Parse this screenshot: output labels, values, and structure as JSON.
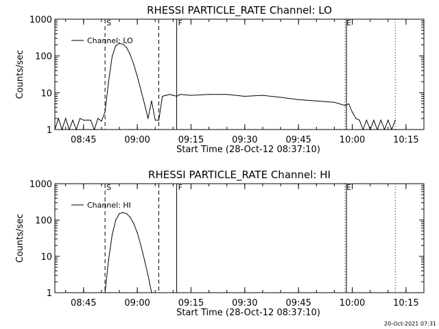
{
  "chart_data": [
    {
      "type": "line",
      "title": "RHESSI PARTICLE_RATE Channel: LO",
      "xlabel": "Start Time (28-Oct-12 08:37:10)",
      "ylabel": "Counts/sec",
      "yscale": "log",
      "ylim": [
        1,
        1000
      ],
      "yticks": [
        "1",
        "10",
        "100",
        "1000"
      ],
      "xticks": [
        "08:45",
        "09:00",
        "09:15",
        "09:30",
        "09:45",
        "10:00",
        "10:15"
      ],
      "legend": "Channel: LO",
      "markers": [
        {
          "label": "S",
          "style": "dashed",
          "time": "08:51"
        },
        {
          "label": "",
          "style": "dashed",
          "time": "09:06"
        },
        {
          "label": "F",
          "style": "solid",
          "time": "09:11"
        },
        {
          "label": "E",
          "style": "dotted",
          "time": "09:58"
        },
        {
          "label": "",
          "style": "solid",
          "time": "09:58"
        },
        {
          "label": "",
          "style": "dotted",
          "time": "10:12"
        }
      ],
      "series": [
        {
          "name": "Channel: LO",
          "x": [
            "08:37",
            "08:38",
            "08:39",
            "08:40",
            "08:41",
            "08:42",
            "08:43",
            "08:44",
            "08:45",
            "08:46",
            "08:47",
            "08:48",
            "08:49",
            "08:50",
            "08:51",
            "08:52",
            "08:53",
            "08:54",
            "08:55",
            "08:56",
            "08:57",
            "08:58",
            "08:59",
            "09:00",
            "09:01",
            "09:02",
            "09:03",
            "09:04",
            "09:05",
            "09:06",
            "09:07",
            "09:08",
            "09:09",
            "09:10",
            "09:11",
            "09:12",
            "09:15",
            "09:20",
            "09:25",
            "09:30",
            "09:35",
            "09:40",
            "09:45",
            "09:50",
            "09:55",
            "09:58",
            "09:59",
            "10:00",
            "10:01",
            "10:02",
            "10:03",
            "10:04",
            "10:05",
            "10:06",
            "10:07",
            "10:08",
            "10:09",
            "10:10",
            "10:11",
            "10:12"
          ],
          "values": [
            1,
            2,
            1,
            2,
            1,
            1.8,
            1,
            2,
            1.8,
            1.8,
            1.8,
            1,
            2,
            1.7,
            3,
            20,
            100,
            190,
            220,
            210,
            170,
            110,
            60,
            28,
            12,
            5,
            2,
            6,
            1.8,
            1.8,
            8,
            8.5,
            9,
            8.5,
            8,
            9,
            8.5,
            9,
            9,
            8,
            8.5,
            7.5,
            6.5,
            6,
            5.5,
            4.5,
            5,
            3,
            2,
            1.8,
            1,
            1.8,
            1,
            1.8,
            1,
            1.8,
            1,
            1.8,
            1,
            1.8
          ]
        }
      ]
    },
    {
      "type": "line",
      "title": "RHESSI PARTICLE_RATE Channel: HI",
      "xlabel": "Start Time (28-Oct-12 08:37:10)",
      "ylabel": "Counts/sec",
      "yscale": "log",
      "ylim": [
        1,
        1000
      ],
      "yticks": [
        "1",
        "10",
        "100",
        "1000"
      ],
      "xticks": [
        "08:45",
        "09:00",
        "09:15",
        "09:30",
        "09:45",
        "10:00",
        "10:15"
      ],
      "legend": "Channel: HI",
      "markers": [
        {
          "label": "S",
          "style": "dashed",
          "time": "08:51"
        },
        {
          "label": "",
          "style": "dashed",
          "time": "09:06"
        },
        {
          "label": "F",
          "style": "solid",
          "time": "09:11"
        },
        {
          "label": "E",
          "style": "dotted",
          "time": "09:58"
        },
        {
          "label": "",
          "style": "solid",
          "time": "09:58"
        },
        {
          "label": "",
          "style": "dotted",
          "time": "10:12"
        }
      ],
      "series": [
        {
          "name": "Channel: HI",
          "x": [
            "08:51",
            "08:52",
            "08:53",
            "08:54",
            "08:55",
            "08:56",
            "08:57",
            "08:58",
            "08:59",
            "09:00",
            "09:01",
            "09:02",
            "09:03",
            "09:04"
          ],
          "values": [
            1,
            8,
            40,
            100,
            150,
            160,
            150,
            120,
            80,
            45,
            20,
            8,
            3,
            1
          ]
        }
      ]
    }
  ],
  "footer": {
    "stamp": "20-Oct-2021 07:31"
  }
}
